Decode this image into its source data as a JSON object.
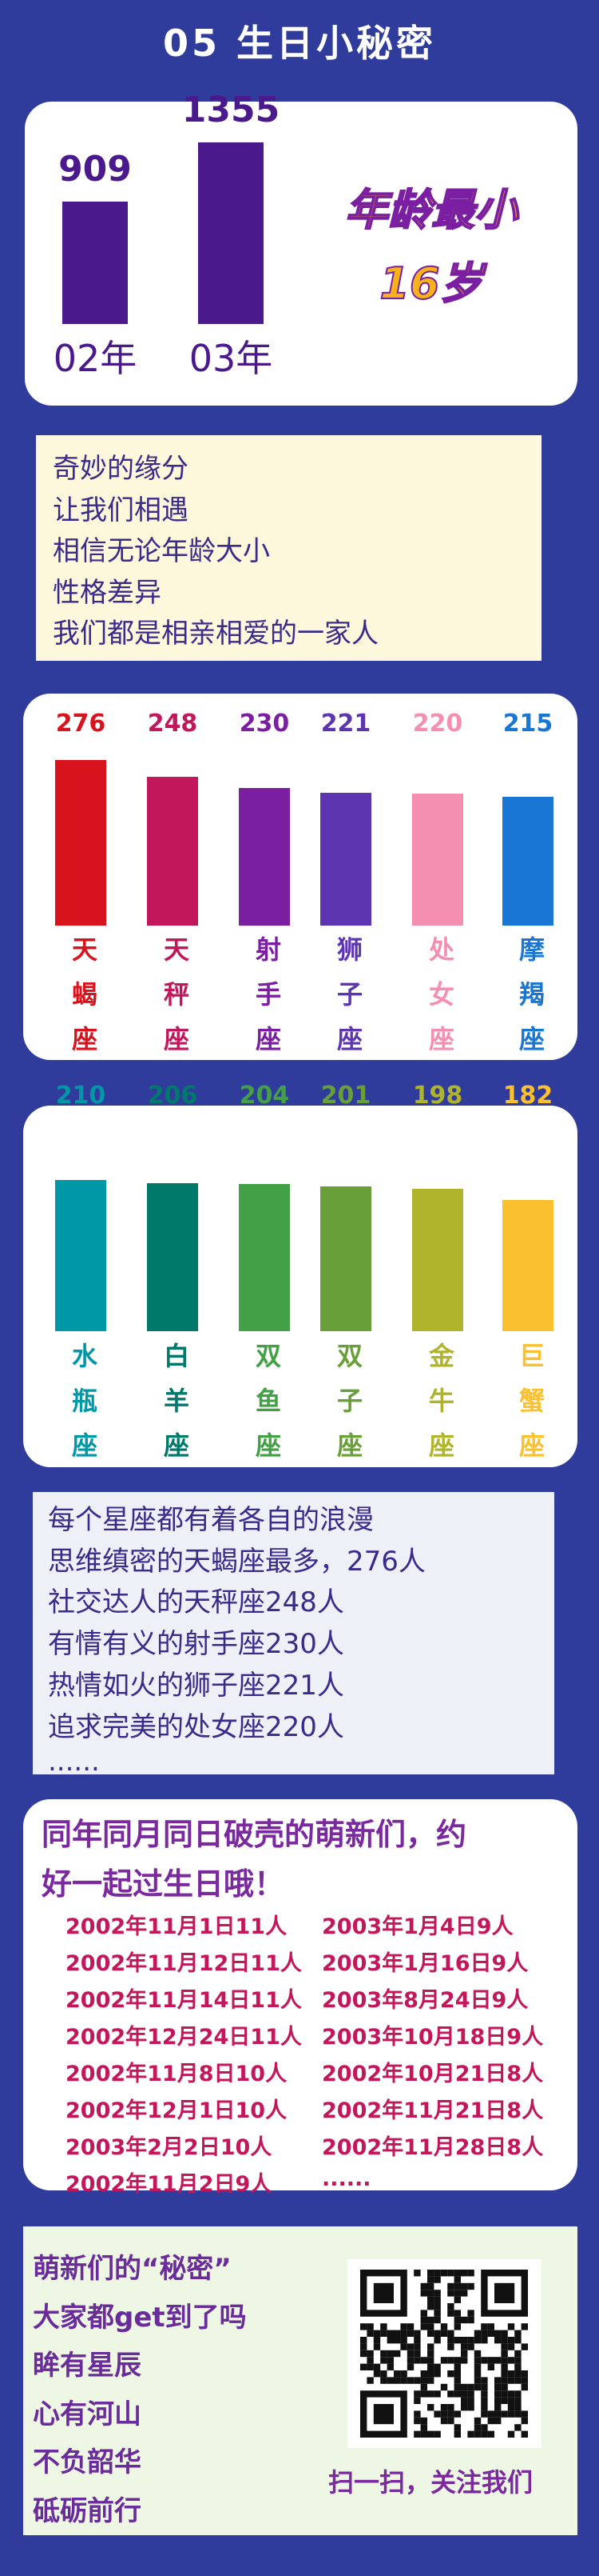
{
  "header": {
    "title": "05 生日小秘密"
  },
  "age_card": {
    "type": "bar",
    "categories": [
      "02年",
      "03年"
    ],
    "values": [
      909,
      1355
    ],
    "color": "#4a1a8c",
    "ylim": [
      0,
      1400
    ],
    "highlight": [
      "年龄最小",
      "16岁"
    ]
  },
  "intro_text": {
    "lines": [
      "奇妙的缘分",
      "让我们相遇",
      "相信无论年龄大小",
      "性格差异",
      "我们都是相亲相爱的一家人"
    ]
  },
  "zodiac_chart_1": {
    "type": "bar",
    "categories": [
      "天蝎座",
      "天秤座",
      "射手座",
      "狮子座",
      "处女座",
      "摩羯座"
    ],
    "values": [
      276,
      248,
      230,
      221,
      220,
      215
    ],
    "colors": [
      "#d7141e",
      "#c2185b",
      "#7b1fa2",
      "#5e35b1",
      "#f48fb1",
      "#1976d2"
    ],
    "ylim": [
      0,
      280
    ]
  },
  "zodiac_chart_2": {
    "type": "bar",
    "categories": [
      "水瓶座",
      "白羊座",
      "双鱼座",
      "双子座",
      "金牛座",
      "巨蟹座"
    ],
    "values": [
      210,
      206,
      204,
      201,
      198,
      182
    ],
    "colors": [
      "#0097a7",
      "#00796b",
      "#43a047",
      "#689f38",
      "#afb42b",
      "#fbc02d"
    ],
    "ylim": [
      0,
      280
    ]
  },
  "summary_text": {
    "lines": [
      "每个星座都有着各自的浪漫",
      "思维缜密的天蝎座最多，276人",
      "社交达人的天秤座248人",
      "有情有义的射手座230人",
      "热情如火的狮子座221人",
      "追求完美的处女座220人",
      "......"
    ]
  },
  "birthday_card": {
    "heading": [
      "同年同月同日破壳的萌新们，约",
      "好一起过生日哦！"
    ],
    "left": [
      "2002年11月1日11人",
      "2002年11月12日11人",
      "2002年11月14日11人",
      "2002年12月24日11人",
      "2002年11月8日10人",
      "2002年12月1日10人",
      "2003年2月2日10人",
      "2002年11月2日9人"
    ],
    "right": [
      "2003年1月4日9人",
      "2003年1月16日9人",
      "2003年8月24日9人",
      "2003年10月18日9人",
      "2002年10月21日8人",
      "2002年11月21日8人",
      "2002年11月28日8人",
      "......"
    ]
  },
  "footer": {
    "lines": [
      "萌新们的“秘密”",
      "大家都get到了吗",
      "眸有星辰",
      "心有河山",
      "不负韶华",
      "砥砺前行"
    ],
    "caption": "扫一扫，关注我们"
  }
}
